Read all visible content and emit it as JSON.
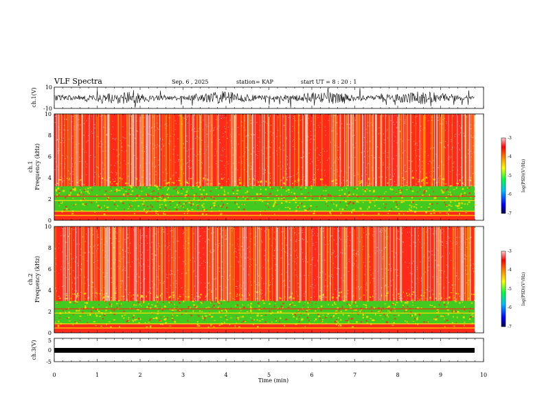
{
  "header": {
    "title": "VLF Spectra",
    "date": "Sep. 6 , 2025",
    "station": "station= KAP",
    "start": "start UT =  8 : 20 : 1"
  },
  "chart_data": [
    {
      "id": "ch1-waveform",
      "type": "line",
      "ylabel": "ch.1(V)",
      "ylim": [
        -10,
        10
      ],
      "yticks": [
        "10",
        "-10"
      ],
      "xlim": [
        0,
        10
      ]
    },
    {
      "id": "ch1-spectrogram",
      "type": "heatmap",
      "ylabel_line1": "ch.1",
      "ylabel_line2": "Frequency (kHz)",
      "ylim": [
        0,
        10
      ],
      "yticks": [
        "0",
        "2",
        "4",
        "6",
        "8",
        "10"
      ],
      "xlim": [
        0,
        10
      ],
      "colorbar": {
        "label": "log(PSD)(V²/Hz)",
        "range": [
          -7,
          -3
        ],
        "ticks": [
          "-3",
          "-4",
          "-5",
          "-6",
          "-7"
        ]
      }
    },
    {
      "id": "ch2-spectrogram",
      "type": "heatmap",
      "ylabel_line1": "ch.2",
      "ylabel_line2": "Frequency (kHz)",
      "ylim": [
        0,
        10
      ],
      "yticks": [
        "0",
        "2",
        "4",
        "6",
        "8",
        "10"
      ],
      "xlim": [
        0,
        10
      ],
      "colorbar": {
        "label": "log(PSD)(V²/Hz)",
        "range": [
          -7,
          -3
        ],
        "ticks": [
          "-3",
          "-4",
          "-5",
          "-6",
          "-7"
        ]
      }
    },
    {
      "id": "ch3-waveform",
      "type": "line",
      "ylabel": "ch.3(V)",
      "ylim": [
        -5,
        5
      ],
      "yticks": [
        "5",
        "0",
        "-5"
      ],
      "xlim": [
        0,
        10
      ]
    }
  ],
  "xaxis": {
    "label": "Time (min)",
    "ticks": [
      "0",
      "1",
      "2",
      "3",
      "4",
      "5",
      "6",
      "7",
      "8",
      "9",
      "10"
    ]
  },
  "colors": {
    "hot": "#ff2a1a",
    "warm": "#ffe000",
    "band": "#22e622",
    "cold": "#0000ff"
  }
}
